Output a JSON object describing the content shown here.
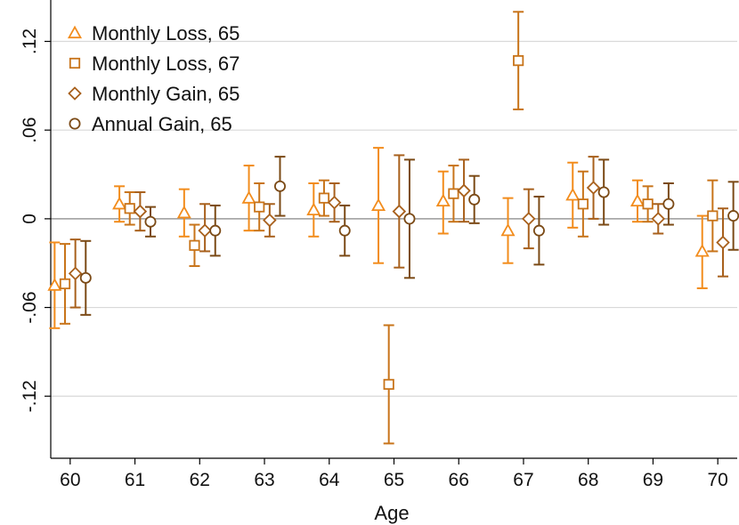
{
  "chart_data": {
    "type": "scatter",
    "title": "",
    "xlabel": "Age",
    "ylabel": "",
    "xlim": [
      59.7,
      70.3
    ],
    "ylim": [
      -0.162,
      0.148
    ],
    "x_ticks": [
      60,
      61,
      62,
      63,
      64,
      65,
      66,
      67,
      68,
      69,
      70
    ],
    "x_tick_labels": [
      "60",
      "61",
      "62",
      "63",
      "64",
      "65",
      "66",
      "67",
      "68",
      "69",
      "70"
    ],
    "y_ticks": [
      -0.12,
      -0.06,
      0,
      0.06,
      0.12
    ],
    "y_tick_labels": [
      "-.12",
      "-.06",
      "0",
      ".06",
      ".12"
    ],
    "grid": true,
    "legend_position": "top-left",
    "error_bars": "confidence intervals",
    "series": [
      {
        "name": "Monthly Loss, 65",
        "marker": "triangle",
        "color": "#F28C1C",
        "offset": -0.24,
        "x": [
          60,
          61,
          62,
          63,
          64,
          65,
          66,
          67,
          68,
          69,
          70
        ],
        "y": [
          -0.045,
          0.01,
          0.004,
          0.014,
          0.006,
          0.009,
          0.012,
          -0.008,
          0.016,
          0.012,
          -0.022
        ],
        "ci_low": [
          -0.074,
          -0.002,
          -0.012,
          -0.008,
          -0.012,
          -0.03,
          -0.01,
          -0.03,
          -0.006,
          -0.002,
          -0.047
        ],
        "ci_high": [
          -0.016,
          0.022,
          0.02,
          0.036,
          0.024,
          0.048,
          0.032,
          0.014,
          0.038,
          0.026,
          0.002
        ]
      },
      {
        "name": "Monthly Loss, 67",
        "marker": "square",
        "color": "#C8741A",
        "offset": -0.08,
        "x": [
          60,
          61,
          62,
          63,
          64,
          65,
          66,
          67,
          68,
          69,
          70
        ],
        "y": [
          -0.044,
          0.007,
          -0.018,
          0.008,
          0.014,
          -0.112,
          0.017,
          0.107,
          0.01,
          0.01,
          0.002
        ],
        "ci_low": [
          -0.071,
          -0.004,
          -0.032,
          -0.008,
          0.002,
          -0.152,
          -0.002,
          0.074,
          -0.012,
          -0.002,
          -0.022
        ],
        "ci_high": [
          -0.017,
          0.018,
          -0.004,
          0.024,
          0.026,
          -0.072,
          0.036,
          0.14,
          0.032,
          0.022,
          0.026
        ]
      },
      {
        "name": "Monthly Gain, 65",
        "marker": "diamond",
        "color": "#A8601C",
        "offset": 0.08,
        "x": [
          60,
          61,
          62,
          63,
          64,
          65,
          66,
          67,
          68,
          69,
          70
        ],
        "y": [
          -0.037,
          0.005,
          -0.008,
          -0.001,
          0.011,
          0.005,
          0.019,
          0.0,
          0.021,
          0.0,
          -0.016
        ],
        "ci_low": [
          -0.06,
          -0.008,
          -0.022,
          -0.012,
          -0.002,
          -0.033,
          -0.002,
          -0.02,
          0.0,
          -0.01,
          -0.039
        ],
        "ci_high": [
          -0.014,
          0.018,
          0.01,
          0.01,
          0.024,
          0.043,
          0.04,
          0.02,
          0.042,
          0.01,
          0.007
        ]
      },
      {
        "name": "Annual Gain, 65",
        "marker": "circle",
        "color": "#7B4A16",
        "offset": 0.24,
        "x": [
          60,
          61,
          62,
          63,
          64,
          65,
          66,
          67,
          68,
          69,
          70
        ],
        "y": [
          -0.04,
          -0.002,
          -0.008,
          0.022,
          -0.008,
          0.0,
          0.013,
          -0.008,
          0.018,
          0.01,
          0.002
        ],
        "ci_low": [
          -0.065,
          -0.012,
          -0.025,
          0.002,
          -0.025,
          -0.04,
          -0.003,
          -0.031,
          -0.004,
          -0.004,
          -0.021
        ],
        "ci_high": [
          -0.015,
          0.008,
          0.009,
          0.042,
          0.009,
          0.04,
          0.029,
          0.015,
          0.04,
          0.024,
          0.025
        ]
      }
    ]
  }
}
